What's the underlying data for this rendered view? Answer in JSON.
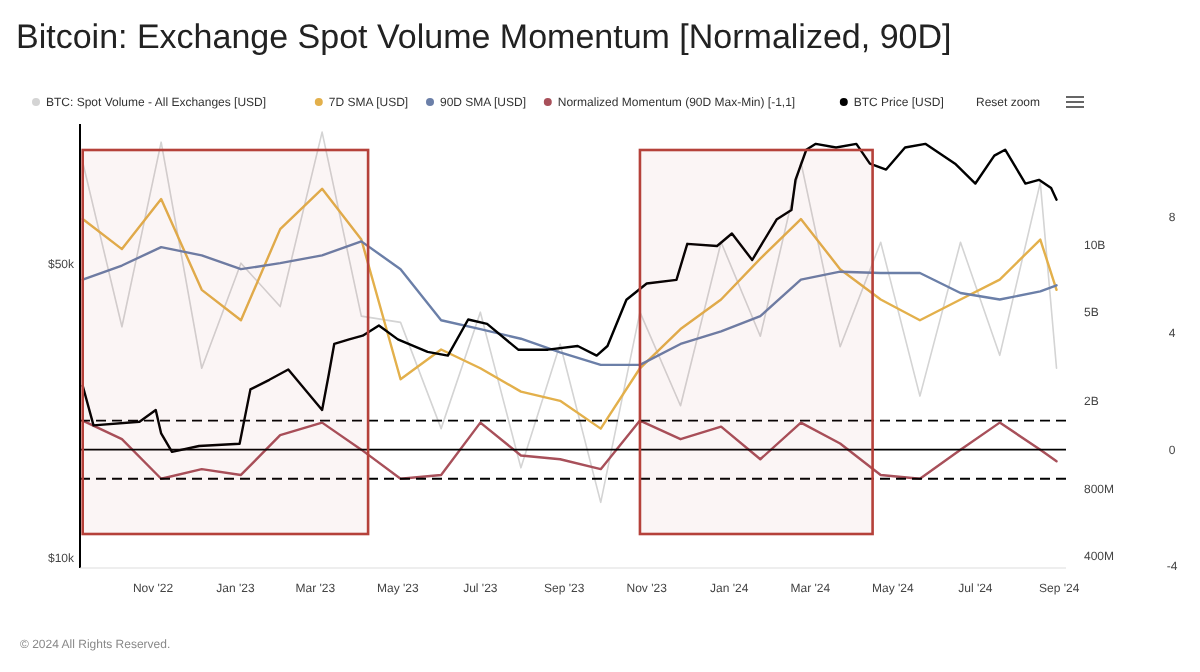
{
  "chart_data": {
    "type": "line",
    "title": "Bitcoin: Exchange Spot Volume Momentum [Normalized, 90D]",
    "annotations": [
      "Reset zoom",
      "© 2024 All Rights Reserved."
    ],
    "legend": "top left",
    "log": "y2",
    "xlim": [
      "2022-09-08",
      "2024-09-06"
    ],
    "xticks": [
      {
        "value": "2022-11-01",
        "label": "Nov '22"
      },
      {
        "value": "2023-01-01",
        "label": "Jan '23"
      },
      {
        "value": "2023-03-01",
        "label": "Mar '23"
      },
      {
        "value": "2023-05-01",
        "label": "May '23"
      },
      {
        "value": "2023-07-01",
        "label": "Jul '23"
      },
      {
        "value": "2023-09-01",
        "label": "Sep '23"
      },
      {
        "value": "2023-11-01",
        "label": "Nov '23"
      },
      {
        "value": "2024-01-01",
        "label": "Jan '24"
      },
      {
        "value": "2024-03-01",
        "label": "Mar '24"
      },
      {
        "value": "2024-05-01",
        "label": "May '24"
      },
      {
        "value": "2024-07-01",
        "label": "Jul '24"
      },
      {
        "value": "2024-09-01",
        "label": "Sep '24"
      }
    ],
    "ylim": [
      8600,
      69000
    ],
    "yticks": [
      {
        "value": 10000,
        "label": "$10k"
      },
      {
        "value": 50000,
        "label": "$50k"
      }
    ],
    "y2lim": [
      355000000.0,
      35000000000.0
    ],
    "y2ticks": [
      {
        "value": 400000000.0,
        "label": "400M"
      },
      {
        "value": 800000000.0,
        "label": "800M"
      },
      {
        "value": 2000000000.0,
        "label": "2B"
      },
      {
        "value": 5000000000.0,
        "label": "5B"
      },
      {
        "value": 10000000000.0,
        "label": "10B"
      }
    ],
    "y3lim": [
      -4.07,
      11.2
    ],
    "y3ticks": [
      -4,
      0,
      4,
      8
    ],
    "x": [
      "2022-09-10",
      "2022-10-09",
      "2022-11-07",
      "2022-12-07",
      "2023-01-05",
      "2023-02-03",
      "2023-03-06",
      "2023-04-04",
      "2023-05-03",
      "2023-06-02",
      "2023-07-01",
      "2023-07-31",
      "2023-08-29",
      "2023-09-28",
      "2023-10-27",
      "2023-11-26",
      "2023-12-26",
      "2024-01-24",
      "2024-02-23",
      "2024-03-23",
      "2024-04-22",
      "2024-05-21",
      "2024-06-20",
      "2024-07-19",
      "2024-08-18",
      "2024-08-30"
    ],
    "ref_lines": [
      {
        "axis": "y3",
        "value": 1,
        "color": "#000000",
        "line_style": "dashed"
      },
      {
        "axis": "y3",
        "value": 0,
        "color": "#000000",
        "line_style": "solid"
      },
      {
        "axis": "y3",
        "value": -1,
        "color": "#000000",
        "line_style": "dashed"
      }
    ],
    "bands": [
      {
        "axis": "x",
        "from": "2022-09-10",
        "to": "2023-04-09",
        "color": "#b5413a"
      },
      {
        "axis": "x",
        "from": "2023-10-27",
        "to": "2024-04-16",
        "color": "#b5413a"
      }
    ],
    "series": [
      {
        "name": "BTC: Spot Volume - All Exchanges [USD]",
        "color": "#d4d4d4",
        "axis": "y2",
        "values": [
          23600000000.0,
          4300000000.0,
          29000000000.0,
          2800000000.0,
          8300000000.0,
          5300000000.0,
          32200000000.0,
          4800000000.0,
          4500000000.0,
          1500000000.0,
          5000000000.0,
          1000000000.0,
          3600000000.0,
          700000000.0,
          5000000000.0,
          1900000000.0,
          10300000000.0,
          3900000000.0,
          23600000000.0,
          3500000000.0,
          10300000000.0,
          2100000000.0,
          10300000000.0,
          3200000000.0,
          19100000000.0,
          2800000000.0
        ]
      },
      {
        "name": "7D SMA [USD]",
        "color": "#e3b04b",
        "axis": "y2",
        "values": [
          13100000000.0,
          9600000000.0,
          16100000000.0,
          6300000000.0,
          4600000000.0,
          11800000000.0,
          17900000000.0,
          10600000000.0,
          2500000000.0,
          3400000000.0,
          2800000000.0,
          2200000000.0,
          2000000000.0,
          1500000000.0,
          2800000000.0,
          4200000000.0,
          5700000000.0,
          8700000000.0,
          13100000000.0,
          7800000000.0,
          5700000000.0,
          4600000000.0,
          5700000000.0,
          7000000000.0,
          10600000000.0,
          6300000000.0
        ]
      },
      {
        "name": "90D SMA [USD]",
        "color": "#6b7fa8",
        "axis": "y2",
        "values": [
          7000000000.0,
          8100000000.0,
          9800000000.0,
          9000000000.0,
          7800000000.0,
          8300000000.0,
          9000000000.0,
          10400000000.0,
          7800000000.0,
          4600000000.0,
          4200000000.0,
          3800000000.0,
          3300000000.0,
          2900000000.0,
          2900000000.0,
          3600000000.0,
          4100000000.0,
          4800000000.0,
          7000000000.0,
          7600000000.0,
          7500000000.0,
          7500000000.0,
          6100000000.0,
          5700000000.0,
          6200000000.0,
          6600000000.0
        ]
      },
      {
        "name": "Normalized Momentum (90D Max-Min) [-1,1]",
        "color": "#a8505a",
        "axis": "y3",
        "values": [
          1.0,
          0.36,
          -1.0,
          -0.67,
          -0.87,
          0.5,
          0.93,
          0,
          -1.0,
          -0.87,
          0.93,
          -0.2,
          -0.33,
          -0.67,
          1.0,
          0.36,
          0.79,
          -0.33,
          0.93,
          0.21,
          -0.87,
          -1.0,
          0,
          0.93,
          0,
          -0.4
        ]
      },
      {
        "name": "BTC Price [USD]",
        "color": "#000000",
        "x": [
          "2022-09-10",
          "2022-09-18",
          "2022-10-22",
          "2022-11-03",
          "2022-11-07",
          "2022-11-15",
          "2022-12-05",
          "2023-01-04",
          "2023-01-12",
          "2023-01-26",
          "2023-02-09",
          "2023-03-06",
          "2023-03-11",
          "2023-03-15",
          "2023-03-26",
          "2023-04-05",
          "2023-04-17",
          "2023-05-01",
          "2023-05-23",
          "2023-06-07",
          "2023-06-22",
          "2023-07-06",
          "2023-07-29",
          "2023-08-20",
          "2023-09-11",
          "2023-09-25",
          "2023-10-03",
          "2023-10-17",
          "2023-11-01",
          "2023-11-23",
          "2023-12-01",
          "2023-12-23",
          "2024-01-03",
          "2024-01-18",
          "2024-02-05",
          "2024-02-16",
          "2024-02-19",
          "2024-02-27",
          "2024-03-05",
          "2024-03-20",
          "2024-04-04",
          "2024-04-14",
          "2024-04-26",
          "2024-05-10",
          "2024-05-25",
          "2024-06-16",
          "2024-07-01",
          "2024-07-15",
          "2024-07-23",
          "2024-08-07",
          "2024-08-17",
          "2024-08-26",
          "2024-08-30"
        ],
        "values": [
          33400,
          28000,
          28500,
          30100,
          26900,
          24400,
          25200,
          25500,
          32900,
          34200,
          35600,
          30100,
          35000,
          39100,
          39700,
          40200,
          41600,
          39700,
          38000,
          37500,
          42400,
          41800,
          38300,
          38300,
          38800,
          37500,
          38800,
          45100,
          47300,
          47800,
          52700,
          52400,
          54100,
          50500,
          56000,
          57300,
          61400,
          65500,
          66300,
          65800,
          66300,
          63600,
          62800,
          65800,
          66300,
          63600,
          60900,
          64700,
          65500,
          60900,
          61400,
          60300,
          58700
        ]
      }
    ]
  }
}
